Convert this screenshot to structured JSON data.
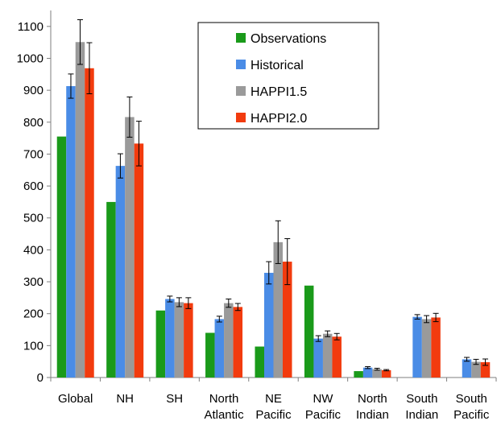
{
  "chart_data": {
    "type": "bar",
    "categories": [
      [
        "Global"
      ],
      [
        "NH"
      ],
      [
        "SH"
      ],
      [
        "North",
        "Atlantic"
      ],
      [
        "NE",
        "Pacific"
      ],
      [
        "NW",
        "Pacific"
      ],
      [
        "North",
        "Indian"
      ],
      [
        "South",
        "Indian"
      ],
      [
        "South",
        "Pacific"
      ]
    ],
    "series": [
      {
        "name": "Observations",
        "color": "#1a9a1a",
        "values": [
          755,
          550,
          210,
          140,
          97,
          288,
          20,
          null,
          null
        ],
        "errors": [
          null,
          null,
          null,
          null,
          null,
          null,
          null,
          null,
          null
        ]
      },
      {
        "name": "Historical",
        "color": "#4a8ce6",
        "values": [
          913,
          663,
          246,
          183,
          328,
          122,
          31,
          190,
          57
        ],
        "errors": [
          38,
          38,
          9,
          9,
          35,
          9,
          3,
          7,
          6
        ]
      },
      {
        "name": "HAPPI1.5",
        "color": "#9a9a9a",
        "values": [
          1051,
          816,
          236,
          233,
          424,
          137,
          26,
          183,
          49
        ],
        "errors": [
          70,
          63,
          14,
          13,
          67,
          9,
          3,
          11,
          8
        ]
      },
      {
        "name": "HAPPI2.0",
        "color": "#f23b0e",
        "values": [
          969,
          733,
          233,
          221,
          363,
          128,
          23,
          188,
          48
        ],
        "errors": [
          80,
          70,
          17,
          11,
          72,
          10,
          2,
          13,
          10
        ]
      }
    ],
    "yticks": [
      0,
      100,
      200,
      300,
      400,
      500,
      600,
      700,
      800,
      900,
      1000,
      1100
    ],
    "ylim": [
      0,
      1150
    ],
    "title": "",
    "xlabel": "",
    "ylabel": "",
    "grid": false,
    "legend": "top-center"
  }
}
